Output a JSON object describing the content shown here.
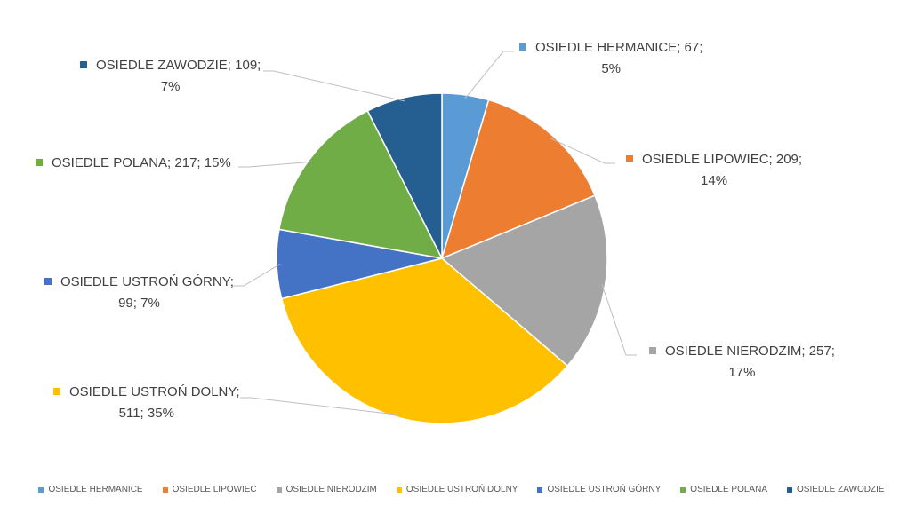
{
  "chart_data": {
    "type": "pie",
    "title": "",
    "legend_position": "bottom",
    "slices": [
      {
        "label": "OSIEDLE HERMANICE",
        "value": 67,
        "percent": "5%",
        "color": "#5B9BD5",
        "callout_line1": "OSIEDLE HERMANICE; 67;",
        "callout_line2": "5%"
      },
      {
        "label": "OSIEDLE LIPOWIEC",
        "value": 209,
        "percent": "14%",
        "color": "#ED7D31",
        "callout_line1": "OSIEDLE LIPOWIEC; 209;",
        "callout_line2": "14%"
      },
      {
        "label": "OSIEDLE NIERODZIM",
        "value": 257,
        "percent": "17%",
        "color": "#A5A5A5",
        "callout_line1": "OSIEDLE NIERODZIM; 257;",
        "callout_line2": "17%"
      },
      {
        "label": "OSIEDLE USTROŃ DOLNY",
        "value": 511,
        "percent": "35%",
        "color": "#FFC000",
        "callout_line1": "OSIEDLE USTROŃ DOLNY;",
        "callout_line2": "511; 35%"
      },
      {
        "label": "OSIEDLE USTROŃ GÓRNY",
        "value": 99,
        "percent": "7%",
        "color": "#4472C4",
        "callout_line1": "OSIEDLE USTROŃ GÓRNY;",
        "callout_line2": "99; 7%"
      },
      {
        "label": "OSIEDLE POLANA",
        "value": 217,
        "percent": "15%",
        "color": "#70AD47",
        "callout_line1": "OSIEDLE POLANA; 217; 15%",
        "callout_line2": ""
      },
      {
        "label": "OSIEDLE ZAWODZIE",
        "value": 109,
        "percent": "7%",
        "color": "#255E91",
        "callout_line1": "OSIEDLE ZAWODZIE; 109;",
        "callout_line2": "7%"
      }
    ]
  }
}
